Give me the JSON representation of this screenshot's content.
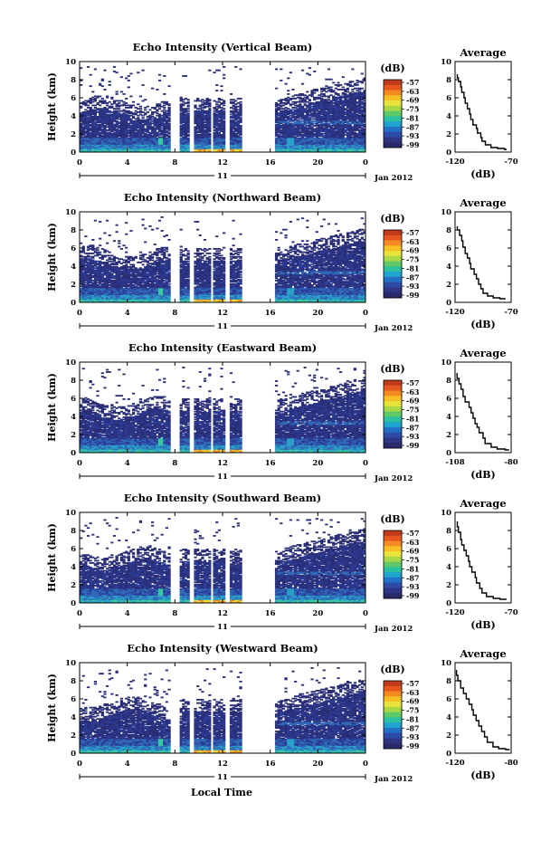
{
  "figure": {
    "xlabel": "Local Time",
    "date_label": "Jan 2012",
    "day_label": "11",
    "colorbar_unit": "(dB)",
    "colorbar_ticks": [
      "-57",
      "-63",
      "-69",
      "-75",
      "-81",
      "-87",
      "-93",
      "-99"
    ],
    "colorbar_colors": [
      "#c03a1c",
      "#e5571f",
      "#f48a22",
      "#f6c024",
      "#e9e23a",
      "#a9d846",
      "#5fc867",
      "#2bc1a0",
      "#1fa3cf",
      "#2270c8",
      "#2d4aa6",
      "#2f3585",
      "#282a6a"
    ],
    "echo_colors": [
      "#2b2f78",
      "#2c3d96",
      "#3069b8",
      "#2aa0c8",
      "#38c9a0",
      "#8fd553",
      "#f0dc38",
      "#f08a22"
    ]
  },
  "chart_data": [
    {
      "type": "heatmap",
      "title": "Echo Intensity (Vertical Beam)",
      "ylabel": "Height (km)",
      "xlim": [
        0,
        24
      ],
      "ylim": [
        0,
        10
      ],
      "xticks": [
        "0",
        "4",
        "8",
        "12",
        "16",
        "20",
        "0"
      ],
      "yticks": [
        "0",
        "2",
        "4",
        "6",
        "8",
        "10"
      ],
      "zlabel": "(dB)",
      "zlim": [
        -99,
        -57
      ],
      "data_gaps_hours": [
        [
          7.6,
          8.5
        ],
        [
          9.2,
          9.5
        ],
        [
          10.9,
          11.2
        ],
        [
          12.2,
          12.6
        ],
        [
          13.5,
          16.4
        ]
      ],
      "profile": {
        "title": "Average",
        "xlabel": "(dB)",
        "ylabel": "",
        "xlim": [
          -120,
          -70
        ],
        "xticks": [
          "-120",
          "-70"
        ],
        "ylim": [
          0,
          10
        ],
        "yticks": [
          "0",
          "2",
          "4",
          "6",
          "8",
          "10"
        ],
        "points": [
          [
            -118,
            8.6
          ],
          [
            -117,
            8.2
          ],
          [
            -115,
            7.8
          ],
          [
            -114,
            7.2
          ],
          [
            -112,
            6.6
          ],
          [
            -111,
            6.0
          ],
          [
            -109,
            5.4
          ],
          [
            -107,
            4.8
          ],
          [
            -106,
            4.2
          ],
          [
            -104,
            3.6
          ],
          [
            -101,
            3.0
          ],
          [
            -100,
            2.6
          ],
          [
            -97,
            2.1
          ],
          [
            -96,
            1.6
          ],
          [
            -93,
            1.2
          ],
          [
            -88,
            0.8
          ],
          [
            -82,
            0.5
          ],
          [
            -76,
            0.4
          ],
          [
            -74,
            0.3
          ]
        ]
      }
    },
    {
      "type": "heatmap",
      "title": "Echo Intensity (Northward Beam)",
      "ylabel": "Height (km)",
      "xlim": [
        0,
        24
      ],
      "ylim": [
        0,
        10
      ],
      "xticks": [
        "0",
        "4",
        "8",
        "12",
        "16",
        "20",
        "0"
      ],
      "yticks": [
        "0",
        "2",
        "4",
        "6",
        "8",
        "10"
      ],
      "zlabel": "(dB)",
      "zlim": [
        -99,
        -57
      ],
      "data_gaps_hours": [
        [
          7.6,
          8.5
        ],
        [
          9.2,
          9.5
        ],
        [
          10.9,
          11.2
        ],
        [
          12.2,
          12.6
        ],
        [
          13.5,
          16.4
        ]
      ],
      "profile": {
        "title": "Average",
        "xlabel": "(dB)",
        "ylabel": "",
        "xlim": [
          -120,
          -70
        ],
        "xticks": [
          "-120",
          "-70"
        ],
        "ylim": [
          0,
          10
        ],
        "yticks": [
          "0",
          "2",
          "4",
          "6",
          "8",
          "10"
        ],
        "points": [
          [
            -118,
            8.4
          ],
          [
            -116,
            8.0
          ],
          [
            -114,
            7.4
          ],
          [
            -113,
            6.8
          ],
          [
            -111,
            6.1
          ],
          [
            -109,
            5.4
          ],
          [
            -107,
            4.9
          ],
          [
            -106,
            4.3
          ],
          [
            -103,
            3.7
          ],
          [
            -101,
            3.1
          ],
          [
            -99,
            2.6
          ],
          [
            -97,
            2.0
          ],
          [
            -95,
            1.5
          ],
          [
            -91,
            1.0
          ],
          [
            -86,
            0.7
          ],
          [
            -80,
            0.5
          ],
          [
            -75,
            0.4
          ]
        ]
      }
    },
    {
      "type": "heatmap",
      "title": "Echo Intensity (Eastward Beam)",
      "ylabel": "Height (km)",
      "xlim": [
        0,
        24
      ],
      "ylim": [
        0,
        10
      ],
      "xticks": [
        "0",
        "4",
        "8",
        "12",
        "16",
        "20",
        "0"
      ],
      "yticks": [
        "0",
        "2",
        "4",
        "6",
        "8",
        "10"
      ],
      "zlabel": "(dB)",
      "zlim": [
        -99,
        -57
      ],
      "data_gaps_hours": [
        [
          7.6,
          8.5
        ],
        [
          9.2,
          9.5
        ],
        [
          10.9,
          11.2
        ],
        [
          12.2,
          12.6
        ],
        [
          13.5,
          16.4
        ]
      ],
      "profile": {
        "title": "Average",
        "xlabel": "(dB)",
        "ylabel": "",
        "xlim": [
          -108,
          -80
        ],
        "xticks": [
          "-108",
          "-80"
        ],
        "ylim": [
          0,
          10
        ],
        "yticks": [
          "0",
          "2",
          "4",
          "6",
          "8",
          "10"
        ],
        "points": [
          [
            -107,
            8.8
          ],
          [
            -106,
            8.2
          ],
          [
            -105,
            7.6
          ],
          [
            -104,
            7.0
          ],
          [
            -103,
            6.2
          ],
          [
            -101,
            5.6
          ],
          [
            -100,
            5.0
          ],
          [
            -99,
            4.4
          ],
          [
            -98,
            3.8
          ],
          [
            -97,
            3.2
          ],
          [
            -96,
            2.8
          ],
          [
            -94,
            2.2
          ],
          [
            -93,
            1.6
          ],
          [
            -90,
            1.0
          ],
          [
            -87,
            0.6
          ],
          [
            -83,
            0.4
          ],
          [
            -81,
            0.3
          ]
        ]
      }
    },
    {
      "type": "heatmap",
      "title": "Echo Intensity (Southward Beam)",
      "ylabel": "Height (km)",
      "xlim": [
        0,
        24
      ],
      "ylim": [
        0,
        10
      ],
      "xticks": [
        "0",
        "4",
        "8",
        "12",
        "16",
        "20",
        "0"
      ],
      "yticks": [
        "0",
        "2",
        "4",
        "6",
        "8",
        "10"
      ],
      "zlabel": "(dB)",
      "zlim": [
        -99,
        -57
      ],
      "data_gaps_hours": [
        [
          7.6,
          8.5
        ],
        [
          9.2,
          9.5
        ],
        [
          10.9,
          11.2
        ],
        [
          12.2,
          12.6
        ],
        [
          13.5,
          16.4
        ]
      ],
      "profile": {
        "title": "Average",
        "xlabel": "(dB)",
        "ylabel": "",
        "xlim": [
          -120,
          -70
        ],
        "xticks": [
          "-120",
          "-70"
        ],
        "ylim": [
          0,
          10
        ],
        "yticks": [
          "0",
          "2",
          "4",
          "6",
          "8",
          "10"
        ],
        "points": [
          [
            -118,
            9.0
          ],
          [
            -117,
            8.4
          ],
          [
            -115,
            7.8
          ],
          [
            -114,
            7.0
          ],
          [
            -112,
            6.4
          ],
          [
            -110,
            5.8
          ],
          [
            -108,
            5.2
          ],
          [
            -107,
            4.6
          ],
          [
            -105,
            4.0
          ],
          [
            -102,
            3.4
          ],
          [
            -101,
            2.8
          ],
          [
            -98,
            2.2
          ],
          [
            -96,
            1.6
          ],
          [
            -92,
            1.1
          ],
          [
            -86,
            0.7
          ],
          [
            -80,
            0.5
          ],
          [
            -74,
            0.4
          ]
        ]
      }
    },
    {
      "type": "heatmap",
      "title": "Echo Intensity (Westward Beam)",
      "ylabel": "Height (km)",
      "xlim": [
        0,
        24
      ],
      "ylim": [
        0,
        10
      ],
      "xticks": [
        "0",
        "4",
        "8",
        "12",
        "16",
        "20",
        "0"
      ],
      "yticks": [
        "0",
        "2",
        "4",
        "6",
        "8",
        "10"
      ],
      "zlabel": "(dB)",
      "zlim": [
        -99,
        -57
      ],
      "data_gaps_hours": [
        [
          7.6,
          8.5
        ],
        [
          9.2,
          9.5
        ],
        [
          10.9,
          11.2
        ],
        [
          12.2,
          12.6
        ],
        [
          13.5,
          16.4
        ]
      ],
      "profile": {
        "title": "Average",
        "xlabel": "(dB)",
        "ylabel": "",
        "xlim": [
          -120,
          -80
        ],
        "xticks": [
          "-120",
          "-80"
        ],
        "ylim": [
          0,
          10
        ],
        "yticks": [
          "0",
          "2",
          "4",
          "6",
          "8",
          "10"
        ],
        "points": [
          [
            -119,
            9.2
          ],
          [
            -118,
            8.6
          ],
          [
            -116,
            8.0
          ],
          [
            -114,
            7.2
          ],
          [
            -112,
            6.6
          ],
          [
            -110,
            6.0
          ],
          [
            -108,
            5.4
          ],
          [
            -107,
            4.8
          ],
          [
            -105,
            4.2
          ],
          [
            -103,
            3.6
          ],
          [
            -101,
            3.0
          ],
          [
            -99,
            2.4
          ],
          [
            -97,
            1.8
          ],
          [
            -93,
            1.2
          ],
          [
            -89,
            0.7
          ],
          [
            -84,
            0.5
          ],
          [
            -81,
            0.4
          ]
        ]
      }
    }
  ]
}
